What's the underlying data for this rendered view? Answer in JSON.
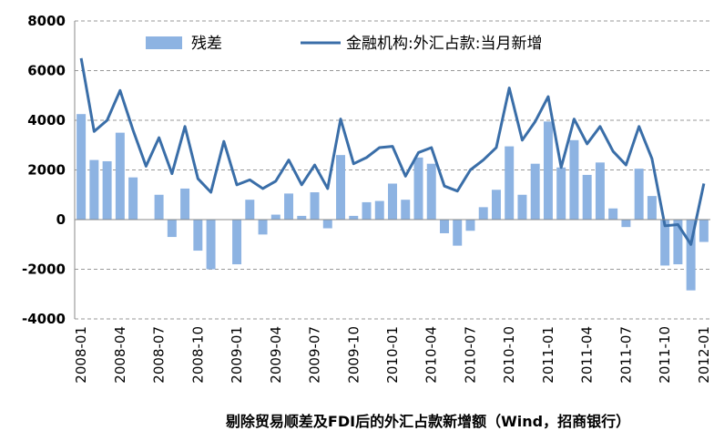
{
  "chart_data": {
    "type": "bar_line",
    "title": "剔除贸易顺差及FDI后的外汇占款新增额（Wind，招商银行）",
    "categories": [
      "2008-01",
      null,
      null,
      "2008-04",
      null,
      null,
      "2008-07",
      null,
      null,
      "2008-10",
      null,
      null,
      "2009-01",
      null,
      null,
      "2009-04",
      null,
      null,
      "2009-07",
      null,
      null,
      "2009-10",
      null,
      null,
      "2010-01",
      null,
      null,
      "2010-04",
      null,
      null,
      "2010-07",
      null,
      null,
      "2010-10",
      null,
      null,
      "2011-01",
      null,
      null,
      "2011-04",
      null,
      null,
      "2011-07",
      null,
      null,
      "2011-10",
      null,
      null,
      "2012-01"
    ],
    "series": [
      {
        "name": "残差",
        "kind": "bar",
        "color": "#8db3e2",
        "values": [
          4250,
          2400,
          2350,
          3500,
          1700,
          0,
          1000,
          -700,
          1250,
          -1250,
          -2000,
          0,
          -1800,
          800,
          -600,
          200,
          1050,
          150,
          1100,
          -350,
          2600,
          150,
          700,
          750,
          1450,
          800,
          2500,
          2250,
          -550,
          -1050,
          -450,
          500,
          1200,
          2950,
          1000,
          2250,
          3950,
          2100,
          3200,
          1800,
          2300,
          450,
          -300,
          2050,
          950,
          -1850,
          -1800,
          -2850,
          -900
        ]
      },
      {
        "name": "金融机构:外汇占款:当月新增",
        "kind": "line",
        "color": "#3a6ea8",
        "values": [
          6500,
          3550,
          4000,
          5200,
          3600,
          2150,
          3300,
          1850,
          3750,
          1650,
          1100,
          3150,
          1400,
          1600,
          1250,
          1550,
          2400,
          1400,
          2200,
          1250,
          4050,
          2250,
          2500,
          2900,
          2950,
          1750,
          2700,
          2900,
          1350,
          1150,
          2000,
          2400,
          2900,
          5300,
          3200,
          3950,
          4950,
          2100,
          4050,
          3050,
          3750,
          2750,
          2200,
          3750,
          2450,
          -250,
          -200,
          -1000,
          1450
        ]
      }
    ],
    "ylim": [
      -4000,
      8000
    ],
    "yticks": [
      -4000,
      -2000,
      0,
      2000,
      4000,
      6000,
      8000
    ],
    "grid": true
  }
}
